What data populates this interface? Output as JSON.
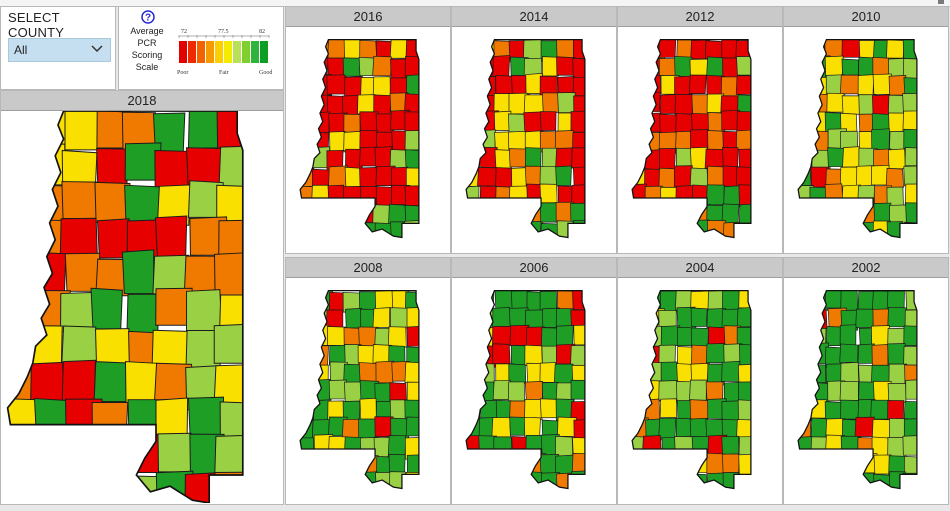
{
  "filter": {
    "title": "SELECT COUNTY",
    "selected": "All",
    "dropdown_icon": "chevron-down-icon"
  },
  "legend": {
    "help_icon": "help-circle-icon",
    "label_lines": [
      "Average",
      "PCR",
      "Scoring",
      "Scale"
    ],
    "scale_ticks": [
      "72",
      "77.5",
      "82"
    ],
    "scale_words": [
      "Poor",
      "Fair",
      "Good"
    ],
    "scale_colors": [
      "#e20000",
      "#ef2a00",
      "#f36200",
      "#f79a00",
      "#fbcf00",
      "#f3ec00",
      "#b8e05a",
      "#7fd02c",
      "#2cb53a",
      "#0e9e25"
    ]
  },
  "maps": [
    {
      "year": "2018"
    },
    {
      "year": "2016"
    },
    {
      "year": "2014"
    },
    {
      "year": "2012"
    },
    {
      "year": "2010"
    },
    {
      "year": "2008"
    },
    {
      "year": "2006"
    },
    {
      "year": "2004"
    },
    {
      "year": "2002"
    }
  ],
  "colors": {
    "poor": "#e60000",
    "poor_fair": "#f07a00",
    "fair": "#f9e000",
    "fair_good": "#9ad043",
    "good": "#1e9e25",
    "header_bg": "#c9c9c9",
    "select_bg": "#c6dff0"
  }
}
